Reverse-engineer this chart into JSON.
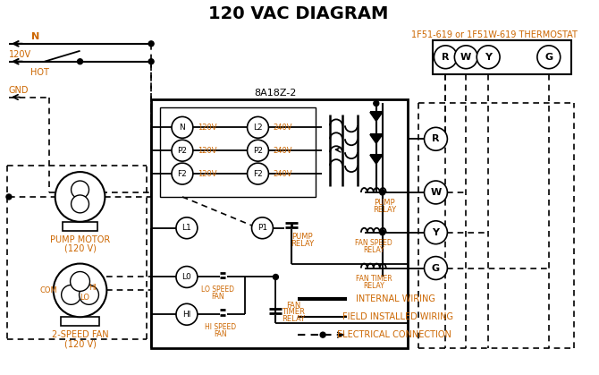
{
  "title": "120 VAC DIAGRAM",
  "title_color": "#000000",
  "title_fontsize": 14,
  "bg_color": "#ffffff",
  "line_color": "#000000",
  "orange_color": "#cc6600",
  "thermostat_label": "1F51-619 or 1F51W-619 THERMOSTAT",
  "box_label": "8A18Z-2",
  "thermostat_terminals": [
    "R",
    "W",
    "Y",
    "G"
  ],
  "left_circle_labels": [
    "N",
    "P2",
    "F2"
  ],
  "right_circle_labels": [
    "L2",
    "P2",
    "F2"
  ],
  "left_v_labels": [
    "120V",
    "120V",
    "120V"
  ],
  "right_v_labels": [
    "240V",
    "240V",
    "240V"
  ],
  "pump_motor_label1": "PUMP MOTOR",
  "pump_motor_label2": "(120 V)",
  "fan_label1": "2-SPEED FAN",
  "fan_label2": "(120 V)",
  "legend_items": [
    "INTERNAL WIRING",
    "FIELD INSTALLED WIRING",
    "ELECTRICAL CONNECTION"
  ]
}
